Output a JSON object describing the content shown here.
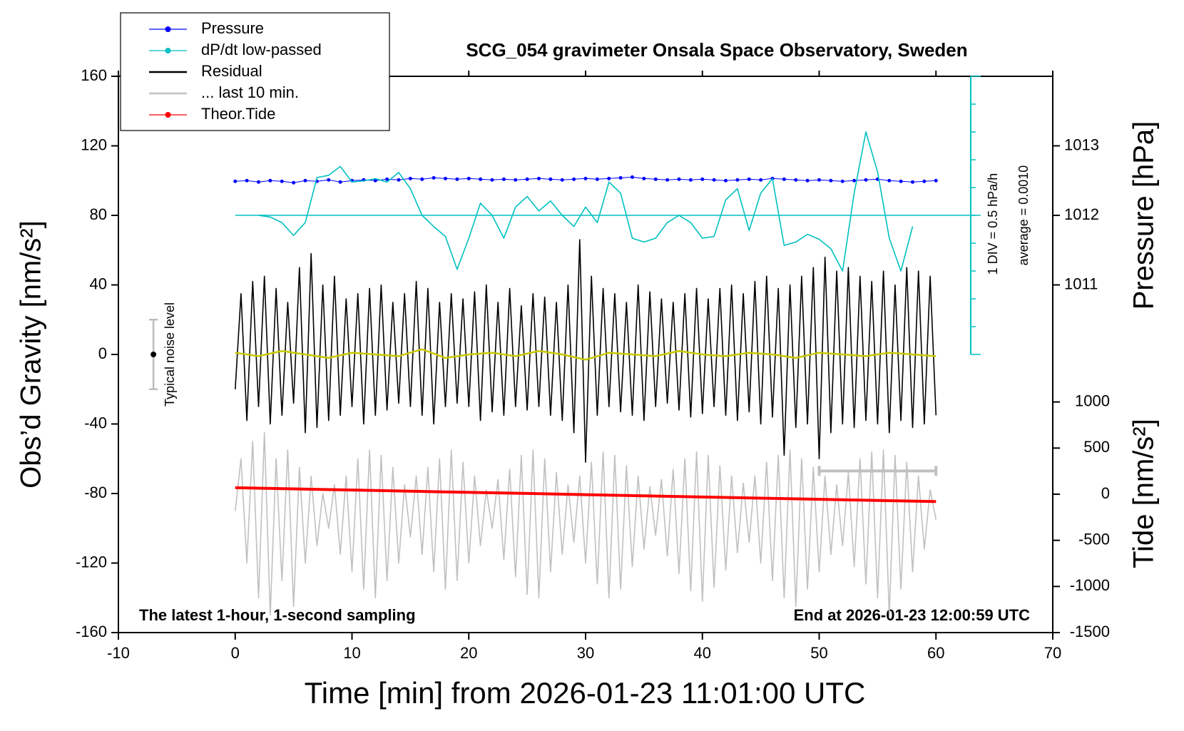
{
  "chart_data": {
    "type": "line",
    "title": "SCG_054 gravimeter Onsala Space Observatory, Sweden",
    "xlabel": "Time [min] from 2026-01-23 11:01:00 UTC",
    "ylabel": "Obs’d Gravity [nm/s²]",
    "y2label": "Pressure [hPa]",
    "y3label": "Tide [nm/s²]",
    "xlim": [
      -10,
      70
    ],
    "xticks": [
      -10,
      0,
      10,
      20,
      30,
      40,
      50,
      60,
      70
    ],
    "ylim": [
      -160,
      160
    ],
    "yticks": [
      -160,
      -120,
      -80,
      -40,
      0,
      40,
      80,
      120,
      160
    ],
    "y2lim": [
      1006,
      1014
    ],
    "y2ticks": [
      1011,
      1012,
      1013
    ],
    "y3lim": [
      -1500,
      4530
    ],
    "y3ticks": [
      -1500,
      -1000,
      -500,
      0,
      500,
      1000
    ],
    "dpdt_lim": [
      -2.5,
      2.5
    ],
    "dpdt_ticks": [
      -2.5,
      -2,
      -1.5,
      -1,
      -0.5,
      0,
      0.5,
      1,
      1.5,
      2,
      2.5
    ],
    "dpdt_scale_label": "1 DIV = 0.5 hPa/h",
    "dpdt_average_label": "average = 0.0010",
    "dpdt_average": 0.001,
    "legend": "upper left",
    "series": [
      {
        "name": "Pressure",
        "color": "#0000ff",
        "axis": "y2",
        "marker": "o",
        "x": [
          0,
          1,
          2,
          3,
          4,
          5,
          6,
          7,
          8,
          9,
          10,
          11,
          12,
          13,
          14,
          15,
          16,
          17,
          18,
          19,
          20,
          21,
          22,
          23,
          24,
          25,
          26,
          27,
          28,
          29,
          30,
          31,
          32,
          33,
          34,
          35,
          36,
          37,
          38,
          39,
          40,
          41,
          42,
          43,
          44,
          45,
          46,
          47,
          48,
          49,
          50,
          51,
          52,
          53,
          54,
          55,
          56,
          57,
          58,
          59,
          60
        ],
        "values": [
          1012.49,
          1012.5,
          1012.48,
          1012.5,
          1012.49,
          1012.47,
          1012.5,
          1012.49,
          1012.51,
          1012.48,
          1012.5,
          1012.51,
          1012.5,
          1012.52,
          1012.51,
          1012.53,
          1012.52,
          1012.54,
          1012.53,
          1012.52,
          1012.53,
          1012.52,
          1012.51,
          1012.52,
          1012.51,
          1012.52,
          1012.53,
          1012.52,
          1012.51,
          1012.52,
          1012.53,
          1012.52,
          1012.53,
          1012.54,
          1012.55,
          1012.53,
          1012.52,
          1012.51,
          1012.52,
          1012.51,
          1012.52,
          1012.51,
          1012.5,
          1012.51,
          1012.52,
          1012.51,
          1012.53,
          1012.52,
          1012.51,
          1012.5,
          1012.51,
          1012.5,
          1012.49,
          1012.5,
          1012.51,
          1012.52,
          1012.5,
          1012.49,
          1012.48,
          1012.49,
          1012.5
        ]
      },
      {
        "name": "dP/dt low-passed",
        "color": "#00c0c0",
        "axis": "dpdt",
        "marker": "o",
        "x": [
          2,
          3,
          4,
          5,
          6,
          7,
          8,
          9,
          10,
          11,
          12,
          13,
          14,
          15,
          16,
          17,
          18,
          19,
          20,
          21,
          22,
          23,
          24,
          25,
          26,
          27,
          28,
          29,
          30,
          31,
          32,
          33,
          34,
          35,
          36,
          37,
          38,
          39,
          40,
          41,
          42,
          43,
          44,
          45,
          46,
          47,
          48,
          49,
          50,
          51,
          52,
          53,
          54,
          55,
          56,
          57,
          58
        ],
        "values": [
          0,
          -0.03,
          -0.13,
          -0.36,
          -0.13,
          0.68,
          0.72,
          0.88,
          0.6,
          0.62,
          0.66,
          0.6,
          0.77,
          0.48,
          0,
          -0.2,
          -0.38,
          -0.97,
          -0.41,
          0.22,
          0,
          -0.41,
          0.15,
          0.34,
          0.08,
          0.26,
          0,
          -0.2,
          0.15,
          -0.13,
          0.6,
          0.4,
          -0.41,
          -0.48,
          -0.41,
          -0.13,
          0,
          -0.13,
          -0.41,
          -0.38,
          0.28,
          0.48,
          -0.27,
          0.4,
          0.66,
          -0.54,
          -0.48,
          -0.34,
          -0.43,
          -0.6,
          -1.0,
          0.4,
          1.5,
          0.78,
          -0.41,
          -1.0,
          -0.2
        ]
      },
      {
        "name": "Residual",
        "color": "#000000",
        "x": [
          0,
          0.5,
          1,
          1.5,
          2,
          2.5,
          3,
          3.5,
          4,
          4.5,
          5,
          5.5,
          6,
          6.5,
          7,
          7.5,
          8,
          8.5,
          9,
          9.5,
          10,
          10.5,
          11,
          11.5,
          12,
          12.5,
          13,
          13.5,
          14,
          14.5,
          15,
          15.5,
          16,
          16.5,
          17,
          17.5,
          18,
          18.5,
          19,
          19.5,
          20,
          20.5,
          21,
          21.5,
          22,
          22.5,
          23,
          23.5,
          24,
          24.5,
          25,
          25.5,
          26,
          26.5,
          27,
          27.5,
          28,
          28.5,
          29,
          29.5,
          30,
          30.5,
          31,
          31.5,
          32,
          32.5,
          33,
          33.5,
          34,
          34.5,
          35,
          35.5,
          36,
          36.5,
          37,
          37.5,
          38,
          38.5,
          39,
          39.5,
          40,
          40.5,
          41,
          41.5,
          42,
          42.5,
          43,
          43.5,
          44,
          44.5,
          45,
          45.5,
          46,
          46.5,
          47,
          47.5,
          48,
          48.5,
          49,
          49.5,
          50,
          50.5,
          51,
          51.5,
          52,
          52.5,
          53,
          53.5,
          54,
          54.5,
          55,
          55.5,
          56,
          56.5,
          57,
          57.5,
          58,
          58.5,
          59,
          59.5,
          60
        ],
        "values": [
          -20,
          35,
          -38,
          42,
          -30,
          45,
          -40,
          38,
          -35,
          30,
          -28,
          50,
          -45,
          58,
          -42,
          40,
          -38,
          45,
          -35,
          32,
          -30,
          35,
          -40,
          38,
          -35,
          40,
          -32,
          30,
          -28,
          35,
          -30,
          42,
          -35,
          38,
          -40,
          30,
          -30,
          35,
          -28,
          32,
          -30,
          36,
          -38,
          40,
          -33,
          30,
          -35,
          38,
          -30,
          28,
          -32,
          35,
          -30,
          33,
          -35,
          30,
          -38,
          40,
          -45,
          66,
          -62,
          45,
          -35,
          38,
          -30,
          35,
          -33,
          30,
          -35,
          40,
          -38,
          36,
          -30,
          32,
          -28,
          30,
          -32,
          35,
          -36,
          38,
          -34,
          32,
          -30,
          38,
          -35,
          40,
          -38,
          35,
          -33,
          42,
          -40,
          45,
          -36,
          38,
          -58,
          40,
          -42,
          45,
          -40,
          50,
          -60,
          56,
          -45,
          48,
          -40,
          50,
          -42,
          45,
          -38,
          42,
          -40,
          48,
          -45,
          40,
          -38,
          50,
          -42,
          48,
          -40,
          45,
          -35
        ]
      },
      {
        "name": "... last 10 min.",
        "color": "#c0c0c0",
        "x": [
          0,
          0.5,
          1,
          1.5,
          2,
          2.5,
          3,
          3.5,
          4,
          4.5,
          5,
          5.5,
          6,
          6.5,
          7,
          7.5,
          8,
          8.5,
          9,
          9.5,
          10,
          10.5,
          11,
          11.5,
          12,
          12.5,
          13,
          13.5,
          14,
          14.5,
          15,
          15.5,
          16,
          16.5,
          17,
          17.5,
          18,
          18.5,
          19,
          19.5,
          20,
          20.5,
          21,
          21.5,
          22,
          22.5,
          23,
          23.5,
          24,
          24.5,
          25,
          25.5,
          26,
          26.5,
          27,
          27.5,
          28,
          28.5,
          29,
          29.5,
          30,
          30.5,
          31,
          31.5,
          32,
          32.5,
          33,
          33.5,
          34,
          34.5,
          35,
          35.5,
          36,
          36.5,
          37,
          37.5,
          38,
          38.5,
          39,
          39.5,
          40,
          40.5,
          41,
          41.5,
          42,
          42.5,
          43,
          43.5,
          44,
          44.5,
          45,
          45.5,
          46,
          46.5,
          47,
          47.5,
          48,
          48.5,
          49,
          49.5,
          50,
          50.5,
          51,
          51.5,
          52,
          52.5,
          53,
          53.5,
          54,
          54.5,
          55,
          55.5,
          56,
          56.5,
          57,
          57.5,
          58,
          58.5,
          59,
          59.5,
          60
        ],
        "values": [
          -90,
          -60,
          -120,
          -50,
          -140,
          -45,
          -150,
          -60,
          -130,
          -55,
          -145,
          -65,
          -120,
          -70,
          -110,
          -80,
          -100,
          -75,
          -115,
          -70,
          -125,
          -60,
          -135,
          -55,
          -140,
          -58,
          -130,
          -65,
          -120,
          -75,
          -105,
          -70,
          -115,
          -65,
          -125,
          -60,
          -135,
          -55,
          -130,
          -62,
          -120,
          -70,
          -110,
          -78,
          -100,
          -72,
          -118,
          -66,
          -128,
          -58,
          -138,
          -55,
          -140,
          -60,
          -125,
          -68,
          -115,
          -75,
          -108,
          -70,
          -120,
          -62,
          -132,
          -56,
          -140,
          -58,
          -135,
          -64,
          -122,
          -70,
          -112,
          -76,
          -104,
          -72,
          -116,
          -66,
          -126,
          -60,
          -136,
          -56,
          -142,
          -58,
          -134,
          -64,
          -124,
          -70,
          -114,
          -74,
          -108,
          -70,
          -120,
          -62,
          -130,
          -58,
          -140,
          -55,
          -145,
          -60,
          -135,
          -65,
          -125,
          -70,
          -115,
          -75,
          -110,
          -68,
          -122,
          -60,
          -132,
          -56,
          -140,
          -55,
          -150,
          -58,
          -135,
          -62,
          -125,
          -70,
          -112,
          -78,
          -95
        ]
      },
      {
        "name": "Theor.Tide",
        "color": "#ff0000",
        "axis": "y3",
        "marker": "o",
        "x": [
          0,
          5,
          10,
          15,
          20,
          25,
          30,
          35,
          40,
          45,
          50,
          55,
          60
        ],
        "values": [
          70,
          58,
          45,
          33,
          20,
          8,
          -5,
          -18,
          -30,
          -43,
          -55,
          -68,
          -80
        ]
      }
    ],
    "smoothed": {
      "color": "#c8c800",
      "x": [
        0,
        2,
        4,
        6,
        8,
        10,
        12,
        14,
        16,
        18,
        20,
        22,
        24,
        26,
        28,
        30,
        32,
        34,
        36,
        38,
        40,
        42,
        44,
        46,
        48,
        50,
        52,
        54,
        56,
        58,
        60
      ],
      "values": [
        1,
        -1,
        2,
        0,
        -2,
        1,
        0,
        -1,
        3,
        -2,
        0,
        1,
        -1,
        2,
        0,
        -3,
        1,
        0,
        -1,
        2,
        0,
        -1,
        1,
        0,
        -2,
        1,
        0,
        -1,
        1,
        0,
        -1
      ]
    },
    "noise": {
      "x": -7,
      "value": 0,
      "error": 20,
      "label": "Typical noise level"
    },
    "last10_range": [
      50,
      60
    ],
    "last10_level": -67,
    "notes": [
      "The latest 1-hour, 1-second sampling",
      "End at 2026-01-23 12:00:59 UTC"
    ]
  }
}
